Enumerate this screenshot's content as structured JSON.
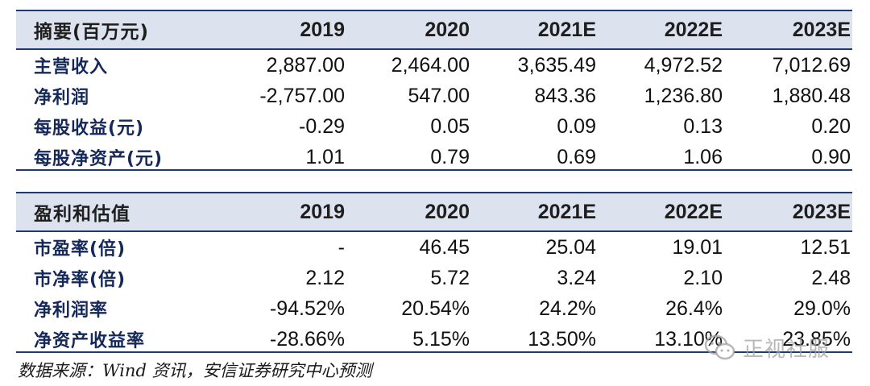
{
  "table1": {
    "header": [
      "摘要(百万元)",
      "2019",
      "2020",
      "2021E",
      "2022E",
      "2023E"
    ],
    "rows": [
      [
        "主营收入",
        "2,887.00",
        "2,464.00",
        "3,635.49",
        "4,972.52",
        "7,012.69"
      ],
      [
        "净利润",
        "-2,757.00",
        "547.00",
        "843.36",
        "1,236.80",
        "1,880.48"
      ],
      [
        "每股收益(元)",
        "-0.29",
        "0.05",
        "0.09",
        "0.13",
        "0.20"
      ],
      [
        "每股净资产(元)",
        "1.01",
        "0.79",
        "0.69",
        "1.06",
        "0.90"
      ]
    ]
  },
  "table2": {
    "header": [
      "盈利和估值",
      "2019",
      "2020",
      "2021E",
      "2022E",
      "2023E"
    ],
    "rows": [
      [
        "市盈率(倍)",
        "-",
        "46.45",
        "25.04",
        "19.01",
        "12.51"
      ],
      [
        "市净率(倍)",
        "2.12",
        "5.72",
        "3.24",
        "2.10",
        "2.48"
      ],
      [
        "净利润率",
        "-94.52%",
        "20.54%",
        "24.2%",
        "26.4%",
        "29.0%"
      ],
      [
        "净资产收益率",
        "-28.66%",
        "5.15%",
        "13.50%",
        "13.10%",
        "23.85%"
      ]
    ]
  },
  "source": "数据来源：Wind 资讯，安信证券研究中心预测",
  "watermark": {
    "text": "正视社服",
    "icon": "wechat-icon"
  },
  "colors": {
    "header_bg": "#dce3ef",
    "rule": "#1f3a70",
    "label": "#14285a"
  }
}
